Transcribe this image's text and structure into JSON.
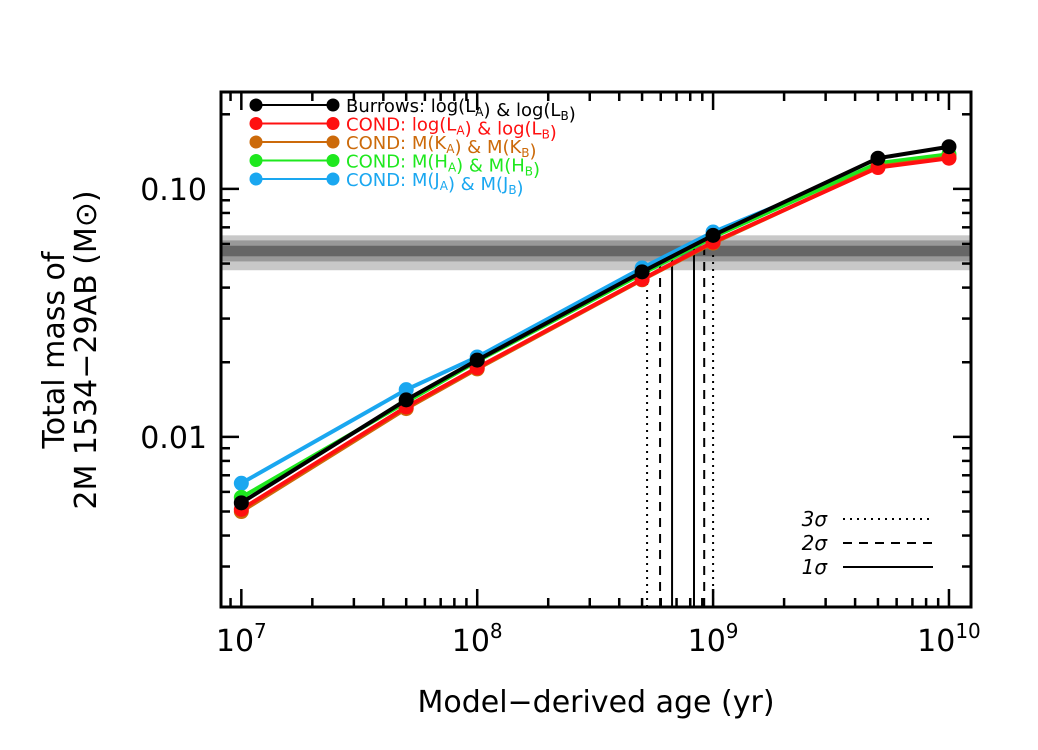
{
  "chart_data": {
    "type": "line",
    "xlabel": "Model−derived age (yr)",
    "ylabel_line1": "Total mass of",
    "ylabel_line2": "2M 1534−29AB (M⊙)",
    "xscale": "log",
    "yscale": "log",
    "xlim": [
      8200000.0,
      12400000000.0
    ],
    "ylim": [
      0.00206,
      0.246
    ],
    "x_tick_labels": [
      {
        "value": 10000000.0,
        "base": "10",
        "exp": "7"
      },
      {
        "value": 100000000.0,
        "base": "10",
        "exp": "8"
      },
      {
        "value": 1000000000.0,
        "base": "10",
        "exp": "9"
      },
      {
        "value": 10000000000.0,
        "base": "10",
        "exp": "10"
      }
    ],
    "y_tick_labels": [
      {
        "value": 0.01,
        "label": "0.01"
      },
      {
        "value": 0.1,
        "label": "0.10"
      }
    ],
    "x": [
      10000000.0,
      50000000.0,
      100000000.0,
      500000000.0,
      1000000000.0,
      5000000000.0,
      10000000000.0
    ],
    "legend_placement": "top-left",
    "series": [
      {
        "name": "COND: M(J_A) & M(J_B)",
        "color": "#1aa7f0",
        "label_parts": [
          [
            "COND: M(J",
            0
          ],
          [
            "A",
            1
          ],
          [
            ") & M(J",
            0
          ],
          [
            "B",
            1
          ],
          [
            ")",
            0
          ]
        ],
        "values": [
          0.0065,
          0.0155,
          0.021,
          0.048,
          0.067,
          0.126,
          0.136
        ]
      },
      {
        "name": "COND: M(H_A) & M(H_B)",
        "color": "#1ee81e",
        "label_parts": [
          [
            "COND: M(H",
            0
          ],
          [
            "A",
            1
          ],
          [
            ") & M(H",
            0
          ],
          [
            "B",
            1
          ],
          [
            ")",
            0
          ]
        ],
        "values": [
          0.0057,
          0.0138,
          0.0202,
          0.0455,
          0.064,
          0.127,
          0.138
        ]
      },
      {
        "name": "COND: M(K_A) & M(K_B)",
        "color": "#cc6a0a",
        "label_parts": [
          [
            "COND: M(K",
            0
          ],
          [
            "A",
            1
          ],
          [
            ") & M(K",
            0
          ],
          [
            "B",
            1
          ],
          [
            ")",
            0
          ]
        ],
        "values": [
          0.005,
          0.013,
          0.0188,
          0.043,
          0.0605,
          0.123,
          0.134
        ]
      },
      {
        "name": "COND: log(L_A) & log(L_B)",
        "color": "#ff1010",
        "label_parts": [
          [
            "COND: log(L",
            0
          ],
          [
            "A",
            1
          ],
          [
            ") & log(L",
            0
          ],
          [
            "B",
            1
          ],
          [
            ")",
            0
          ]
        ],
        "values": [
          0.0051,
          0.0132,
          0.019,
          0.0432,
          0.061,
          0.122,
          0.133
        ]
      },
      {
        "name": "Burrows: log(L_A) & log(L_B)",
        "color": "#000000",
        "label_parts": [
          [
            "Burrows: log(L",
            0
          ],
          [
            "A",
            1
          ],
          [
            ") & log(L",
            0
          ],
          [
            "B",
            1
          ],
          [
            ")",
            0
          ]
        ],
        "values": [
          0.00542,
          0.0141,
          0.0204,
          0.0463,
          0.065,
          0.133,
          0.148
        ]
      }
    ],
    "legend_order": [
      4,
      3,
      2,
      1,
      0
    ],
    "mass_bands": [
      {
        "level": "3sigma",
        "range": [
          0.047,
          0.065
        ],
        "color": "#c8c8c8"
      },
      {
        "level": "2sigma",
        "range": [
          0.051,
          0.062
        ],
        "color": "#999999"
      },
      {
        "level": "1sigma",
        "range": [
          0.0535,
          0.059
        ],
        "color": "#666666"
      }
    ],
    "age_limits": [
      {
        "label": "3σ",
        "style": "dotted",
        "ages": [
          525000000.0,
          1000000000.0
        ]
      },
      {
        "label": "2σ",
        "style": "dashed",
        "ages": [
          596000000.0,
          917000000.0
        ]
      },
      {
        "label": "1σ",
        "style": "solid",
        "ages": [
          670000000.0,
          830000000.0
        ]
      }
    ]
  }
}
